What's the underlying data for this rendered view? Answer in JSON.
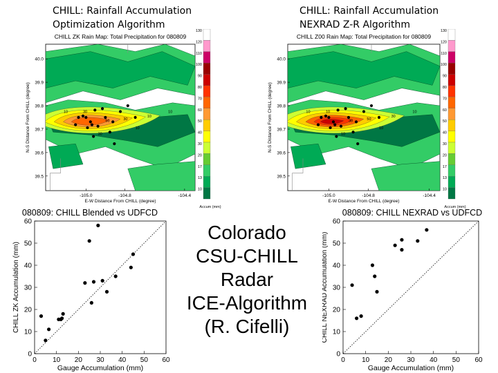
{
  "headers": {
    "left": [
      "CHILL: Rainfall Accumulation",
      "Optimization Algorithm"
    ],
    "right": [
      "CHILL: Rainfall Accumulation",
      "NEXRAD Z-R Algorithm"
    ]
  },
  "center_title": [
    "Colorado",
    "CSU-CHILL",
    "Radar",
    "ICE-Algorithm",
    "(R. Cifelli)"
  ],
  "colorbar": {
    "ticks": [
      "130",
      "120",
      "110",
      "100",
      "90",
      "80",
      "70",
      "60",
      "50",
      "40",
      "30",
      "20",
      "17",
      "13",
      "10"
    ],
    "colors": [
      "#ffffff",
      "#ff99cc",
      "#cc0066",
      "#990000",
      "#cc0000",
      "#ff3300",
      "#ff6600",
      "#ff9933",
      "#ffcc00",
      "#ffff00",
      "#ccff33",
      "#66cc33",
      "#33cc66",
      "#00aa55",
      "#007744"
    ],
    "unit": "Accum (mm)"
  },
  "maps": [
    {
      "title": "CHILL ZK Rain Map: Total Precipitation for 080809",
      "ylabel": "N-S Distance From CHILL (degree)",
      "xlabel": "E-W Distance From CHILL (degree)",
      "yticks": [
        "40.0",
        "39.9",
        "39.8",
        "39.7",
        "39.6",
        "39.5"
      ],
      "xticks": [
        "-105.0",
        "-104.8",
        "-104.4"
      ],
      "contour_labels": [
        "10",
        "30",
        "50",
        "30",
        "10",
        "10",
        "30",
        "10"
      ],
      "intensity": "moderate"
    },
    {
      "title": "CHILL Z00 Rain Map: Total Precipitation for 080809",
      "ylabel": "N-S Distance From CHILL (degree)",
      "xlabel": "E-W Distance From CHILL (degree)",
      "yticks": [
        "40.0",
        "39.9",
        "39.8",
        "39.7",
        "39.6",
        "39.5"
      ],
      "xticks": [
        "-105.0",
        "-104.8",
        "-104.4"
      ],
      "contour_labels": [
        "10",
        "10",
        "30",
        "50",
        "30",
        "10",
        "10",
        "10"
      ],
      "intensity": "heavy"
    }
  ],
  "chart_data": [
    {
      "type": "scatter",
      "title": "080809: CHILL Blended vs UDFCD",
      "xlabel": "Gauge Accumulation (mm)",
      "ylabel": "CHILL ZK Accumulation (mm)",
      "xlim": [
        0,
        60
      ],
      "ylim": [
        0,
        60
      ],
      "xticks": [
        "0",
        "10",
        "20",
        "30",
        "40",
        "50",
        "60"
      ],
      "yticks": [
        "0",
        "10",
        "20",
        "30",
        "40",
        "50",
        "60"
      ],
      "reference_line": "1:1 dotted diagonal",
      "points": [
        [
          3,
          17
        ],
        [
          5,
          6
        ],
        [
          6.5,
          11
        ],
        [
          11,
          15.5
        ],
        [
          12,
          15.5
        ],
        [
          13,
          18
        ],
        [
          12.5,
          16
        ],
        [
          23,
          32
        ],
        [
          25,
          51
        ],
        [
          26,
          23
        ],
        [
          27,
          32.5
        ],
        [
          29,
          58
        ],
        [
          31,
          33
        ],
        [
          33,
          28
        ],
        [
          37,
          35
        ],
        [
          44,
          39
        ],
        [
          45,
          45
        ]
      ]
    },
    {
      "type": "scatter",
      "title": "080809: CHILL NEXRAD vs UDFCD",
      "xlabel": "Gauge Accumulation (mm)",
      "ylabel": "CHILL NEXRAD Accumulation (mm)",
      "xlim": [
        0,
        60
      ],
      "ylim": [
        0,
        60
      ],
      "xticks": [
        "0",
        "10",
        "20",
        "30",
        "40",
        "50",
        "60"
      ],
      "yticks": [
        "0",
        "10",
        "20",
        "30",
        "40",
        "50",
        "60"
      ],
      "reference_line": "1:1 dotted diagonal",
      "points": [
        [
          4,
          31
        ],
        [
          6,
          16
        ],
        [
          8,
          17
        ],
        [
          13,
          40
        ],
        [
          14,
          35
        ],
        [
          15,
          28
        ],
        [
          23,
          49
        ],
        [
          26,
          51.5
        ],
        [
          26,
          47
        ],
        [
          33,
          51
        ],
        [
          37,
          56
        ]
      ]
    }
  ]
}
